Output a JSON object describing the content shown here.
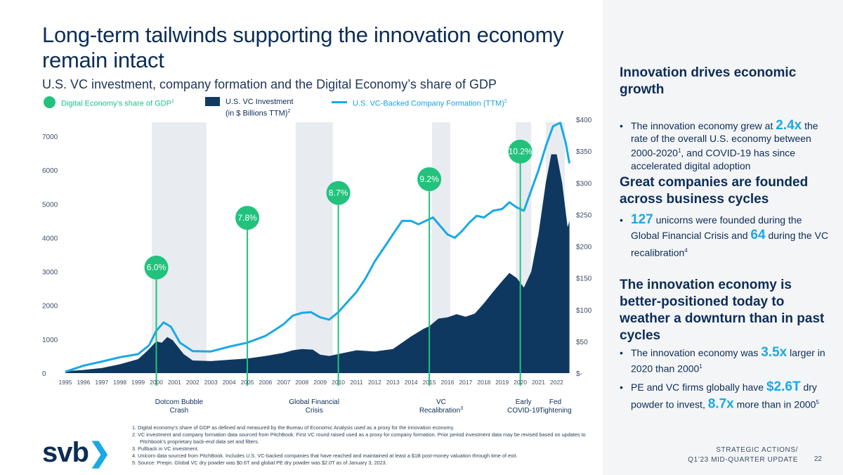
{
  "title": "Long-term tailwinds supporting the innovation economy remain intact",
  "subtitle": "U.S. VC investment, company formation and the Digital Economy’s share of GDP",
  "legend": {
    "digital_share": "Digital Economy’s share of GDP",
    "digital_share_sup": "1",
    "vc_investment_line1": "U.S. VC Investment",
    "vc_investment_line2": "(in $ Billions TTM)",
    "vc_investment_sup": "2",
    "company_formation": "U.S. VC-Backed Company Formation (TTM)",
    "company_formation_sup": "2"
  },
  "colors": {
    "navy": "#0c2d57",
    "area": "#0f3860",
    "line": "#1aa8e6",
    "teal": "#22c27d",
    "band": "#e8ecf1"
  },
  "chart_data": {
    "type": "area",
    "title": "U.S. VC investment, company formation and the Digital Economy’s share of GDP",
    "x_ticks": [
      "1995",
      "1996",
      "1997",
      "1998",
      "1999",
      "2000",
      "2001",
      "2002",
      "2003",
      "2004",
      "2005",
      "2006",
      "2007",
      "2008",
      "2009",
      "2010",
      "2011",
      "2012",
      "2013",
      "2014",
      "2015",
      "2016",
      "2017",
      "2018",
      "2019",
      "2020",
      "2021",
      "2022"
    ],
    "left_axis": {
      "ticks": [
        "0",
        "1000",
        "2000",
        "3000",
        "4000",
        "5000",
        "6000",
        "7000"
      ],
      "range": [
        0,
        7000
      ]
    },
    "right_axis": {
      "ticks": [
        "$-",
        "$50",
        "$100",
        "$150",
        "$200",
        "$250",
        "$300",
        "$350",
        "$400"
      ],
      "range": [
        0,
        400
      ]
    },
    "series": [
      {
        "name": "U.S. VC Investment (in $ Billions TTM)",
        "axis": "right",
        "style": "area",
        "points": [
          [
            1995,
            3
          ],
          [
            1996,
            5
          ],
          [
            1997,
            8
          ],
          [
            1998,
            14
          ],
          [
            1999,
            22
          ],
          [
            1999.5,
            35
          ],
          [
            2000.0,
            50
          ],
          [
            2000.3,
            48
          ],
          [
            2000.6,
            57
          ],
          [
            2000.9,
            52
          ],
          [
            2001.5,
            30
          ],
          [
            2002.0,
            20
          ],
          [
            2003.0,
            19
          ],
          [
            2004.0,
            21
          ],
          [
            2005.0,
            23
          ],
          [
            2006.0,
            27
          ],
          [
            2007.0,
            32
          ],
          [
            2007.5,
            36
          ],
          [
            2008.0,
            38
          ],
          [
            2008.6,
            37
          ],
          [
            2009.0,
            29
          ],
          [
            2009.5,
            27
          ],
          [
            2010.0,
            30
          ],
          [
            2011.0,
            36
          ],
          [
            2012.0,
            34
          ],
          [
            2013.0,
            38
          ],
          [
            2014.0,
            58
          ],
          [
            2014.7,
            70
          ],
          [
            2015.0,
            74
          ],
          [
            2015.5,
            86
          ],
          [
            2016.0,
            88
          ],
          [
            2016.5,
            93
          ],
          [
            2017.0,
            89
          ],
          [
            2017.5,
            94
          ],
          [
            2018.0,
            110
          ],
          [
            2018.5,
            128
          ],
          [
            2019.0,
            145
          ],
          [
            2019.4,
            158
          ],
          [
            2019.8,
            150
          ],
          [
            2020.2,
            135
          ],
          [
            2020.6,
            160
          ],
          [
            2021.0,
            220
          ],
          [
            2021.4,
            300
          ],
          [
            2021.7,
            345
          ],
          [
            2022.0,
            345
          ],
          [
            2022.3,
            300
          ],
          [
            2022.6,
            230
          ],
          [
            2022.7,
            240
          ]
        ]
      },
      {
        "name": "U.S. VC-Backed Company Formation (TTM)",
        "axis": "left",
        "style": "line",
        "points": [
          [
            1995,
            40
          ],
          [
            1996,
            220
          ],
          [
            1997,
            340
          ],
          [
            1998,
            470
          ],
          [
            1999,
            560
          ],
          [
            1999.6,
            820
          ],
          [
            2000.0,
            1250
          ],
          [
            2000.4,
            1500
          ],
          [
            2000.8,
            1370
          ],
          [
            2001.3,
            900
          ],
          [
            2002.0,
            650
          ],
          [
            2003.0,
            640
          ],
          [
            2004.0,
            780
          ],
          [
            2005.0,
            900
          ],
          [
            2006.0,
            1100
          ],
          [
            2006.5,
            1270
          ],
          [
            2007.0,
            1450
          ],
          [
            2007.5,
            1700
          ],
          [
            2008.0,
            1780
          ],
          [
            2008.5,
            1800
          ],
          [
            2009.0,
            1650
          ],
          [
            2009.5,
            1580
          ],
          [
            2010.0,
            1800
          ],
          [
            2010.5,
            2100
          ],
          [
            2011.0,
            2400
          ],
          [
            2011.5,
            2800
          ],
          [
            2012.0,
            3300
          ],
          [
            2012.5,
            3700
          ],
          [
            2013.0,
            4100
          ],
          [
            2013.5,
            4500
          ],
          [
            2014.0,
            4500
          ],
          [
            2014.4,
            4400
          ],
          [
            2014.8,
            4500
          ],
          [
            2015.2,
            4600
          ],
          [
            2015.6,
            4350
          ],
          [
            2016.0,
            4100
          ],
          [
            2016.4,
            4000
          ],
          [
            2016.8,
            4200
          ],
          [
            2017.2,
            4450
          ],
          [
            2017.6,
            4650
          ],
          [
            2018.0,
            4600
          ],
          [
            2018.5,
            4800
          ],
          [
            2019.0,
            4850
          ],
          [
            2019.4,
            5050
          ],
          [
            2019.8,
            4900
          ],
          [
            2020.2,
            4800
          ],
          [
            2020.6,
            5400
          ],
          [
            2021.0,
            6000
          ],
          [
            2021.4,
            6700
          ],
          [
            2021.8,
            7300
          ],
          [
            2022.2,
            7400
          ],
          [
            2022.5,
            6800
          ],
          [
            2022.7,
            6200
          ]
        ]
      }
    ],
    "digital_share_markers": [
      {
        "year": 2000,
        "label": "6.0%",
        "value": 6.0
      },
      {
        "year": 2005,
        "label": "7.8%",
        "value": 7.8
      },
      {
        "year": 2010,
        "label": "8.7%",
        "value": 8.7
      },
      {
        "year": 2015,
        "label": "9.2%",
        "value": 9.2
      },
      {
        "year": 2020,
        "label": "10.2%",
        "value": 10.2
      }
    ],
    "shaded_periods": [
      {
        "label_line1": "Dotcom Bubble",
        "label_line2": "Crash",
        "sup": "",
        "start": 1999.75,
        "end": 2002.75
      },
      {
        "label_line1": "Global Financial",
        "label_line2": "Crisis",
        "sup": "",
        "start": 2007.65,
        "end": 2009.7
      },
      {
        "label_line1": "VC",
        "label_line2": "Recalibration",
        "sup": "3",
        "start": 2015.15,
        "end": 2016.15
      },
      {
        "label_line1": "Early",
        "label_line2": "COVID-19",
        "sup": "",
        "start": 2019.75,
        "end": 2020.6
      },
      {
        "label_line1": "Fed",
        "label_line2": "Tightening",
        "sup": "",
        "start": 2021.4,
        "end": 2022.45
      }
    ]
  },
  "footnotes": [
    "1.  Digital economy’s share of GDP as defined and measured by the Bureau of Economic Analysis used as a proxy for the innovation economy.",
    "2.  VC investment and company formation data sourced from PitchBook.  First VC round raised used as a proxy for company formation. Prior period investment data may be revised based on updates to Pitchbook’s proprietary back-end data set and filters.",
    "3.  Pullback in VC investment.",
    "4.  Unicorn data sourced from PitchBook.  Includes U.S. VC-backed companies that have reached and maintained at least a $1B post-money valuation through time of exit.",
    "5.  Source: Preqin. Global VC dry powder was $0.6T and global PE dry powder was $2.0T as of January 3, 2023."
  ],
  "logo": {
    "text": "svb",
    "chevron": "❯"
  },
  "sidebar": {
    "head1": "Innovation drives economic growth",
    "b1_pre": "The innovation economy grew at",
    "b1_hl": "2.4x",
    "b1_mid": "the rate of the overall U.S. economy between 2000-2020",
    "b1_sup": "1",
    "b1_post": ", and COVID-19 has since accelerated digital adoption",
    "head2": "Great companies are founded across business cycles",
    "b2_hl1": "127",
    "b2_mid": "unicorns were founded during the Global Financial Crisis and",
    "b2_hl2": "64",
    "b2_post": "during the VC recalibration",
    "b2_sup": "4",
    "head3": "The innovation economy is better-positioned today to weather a downturn than in past cycles",
    "b3_pre": "The innovation economy was",
    "b3_hl": "3.5x",
    "b3_post": "larger in 2020 than 2000",
    "b3_sup": "1",
    "b4_pre": "PE and VC firms globally have",
    "b4_hl1": "$2.6T",
    "b4_mid": "dry powder to invest,",
    "b4_hl2": "8.7x",
    "b4_post": "more than in 2000",
    "b4_sup": "5"
  },
  "footer": {
    "line1": "STRATEGIC ACTIONS/",
    "line2": "Q1’23 MID-QUARTER UPDATE",
    "page": "22"
  }
}
